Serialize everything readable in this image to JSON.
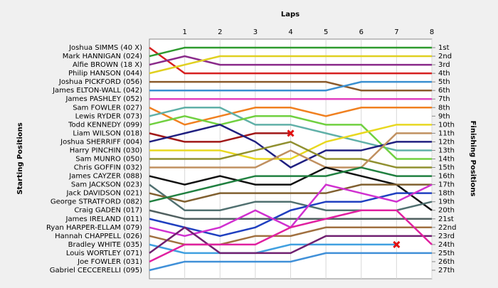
{
  "chart_data": {
    "type": "lap",
    "title": "Laps",
    "ylabel": "Starting Positions",
    "y2label": "Finishing Positions",
    "x": [
      0,
      1,
      2,
      3,
      4,
      5,
      6,
      7,
      8
    ],
    "xlim": [
      0,
      8
    ],
    "xticks": [
      1,
      2,
      3,
      4,
      5,
      6,
      7,
      8
    ],
    "ylim": [
      27,
      1
    ],
    "y2lim": [
      27,
      1
    ],
    "grid": true,
    "y2ticks": [
      {
        "value": 1,
        "label": "1st"
      },
      {
        "value": 2,
        "label": "2nd"
      },
      {
        "value": 3,
        "label": "3rd"
      },
      {
        "value": 4,
        "label": "4th"
      },
      {
        "value": 5,
        "label": "5th"
      },
      {
        "value": 6,
        "label": "6th"
      },
      {
        "value": 7,
        "label": "7th"
      },
      {
        "value": 8,
        "label": "8th"
      },
      {
        "value": 9,
        "label": "9th"
      },
      {
        "value": 10,
        "label": "10th"
      },
      {
        "value": 11,
        "label": "11th"
      },
      {
        "value": 12,
        "label": "12th"
      },
      {
        "value": 13,
        "label": "13th"
      },
      {
        "value": 14,
        "label": "14th"
      },
      {
        "value": 15,
        "label": "15th"
      },
      {
        "value": 16,
        "label": "16th"
      },
      {
        "value": 17,
        "label": "17th"
      },
      {
        "value": 18,
        "label": "18th"
      },
      {
        "value": 19,
        "label": "19th"
      },
      {
        "value": 20,
        "label": "20th"
      },
      {
        "value": 21,
        "label": "21st"
      },
      {
        "value": 22,
        "label": "22nd"
      },
      {
        "value": 23,
        "label": "23rd"
      },
      {
        "value": 24,
        "label": "24th"
      },
      {
        "value": 25,
        "label": "25th"
      },
      {
        "value": 26,
        "label": "26th"
      },
      {
        "value": 27,
        "label": "27th"
      }
    ],
    "series": [
      {
        "name": "Joshua SIMMS (40 X)",
        "color": "#d62020",
        "values": [
          1,
          4,
          4,
          4,
          4,
          4,
          4,
          4,
          4
        ]
      },
      {
        "name": "Mark HANNIGAN (024)",
        "color": "#2e9a2e",
        "values": [
          2,
          1,
          1,
          1,
          1,
          1,
          1,
          1,
          1
        ]
      },
      {
        "name": "Alfie BROWN (18 X)",
        "color": "#8a2a8a",
        "values": [
          3,
          2,
          3,
          3,
          3,
          3,
          3,
          3,
          3
        ]
      },
      {
        "name": "Philip HANSON (044)",
        "color": "#e0d020",
        "values": [
          4,
          3,
          2,
          2,
          2,
          2,
          2,
          2,
          2
        ]
      },
      {
        "name": "Joshua PICKFORD (056)",
        "color": "#8b5a2b",
        "values": [
          5,
          5,
          5,
          5,
          5,
          5,
          6,
          6,
          6
        ]
      },
      {
        "name": "James ELTON-WALL (042)",
        "color": "#3a8fd0",
        "values": [
          6,
          6,
          6,
          6,
          6,
          6,
          5,
          5,
          5
        ]
      },
      {
        "name": "James PASHLEY (052)",
        "color": "#e040c0",
        "values": [
          7,
          7,
          7,
          7,
          7,
          7,
          7,
          7,
          7
        ]
      },
      {
        "name": "Sam FOWLER (027)",
        "color": "#f08020",
        "values": [
          8,
          10,
          9,
          8,
          8,
          9,
          8,
          8,
          8
        ]
      },
      {
        "name": "Lewis RYDER (073)",
        "color": "#60b0a8",
        "values": [
          9,
          8,
          8,
          10,
          10,
          11,
          12,
          13,
          13
        ]
      },
      {
        "name": "Todd KENNEDY (099)",
        "color": "#70d040",
        "values": [
          10,
          9,
          10,
          9,
          9,
          10,
          10,
          14,
          14
        ]
      },
      {
        "name": "Liam WILSON (018)",
        "color": "#a01818",
        "values": [
          11,
          12,
          12,
          11,
          11,
          null,
          null,
          null,
          null
        ],
        "retired": true
      },
      {
        "name": "Joshua SHERRIFF (004)",
        "color": "#202080",
        "values": [
          12,
          11,
          10,
          12,
          15,
          13,
          13,
          12,
          12
        ]
      },
      {
        "name": "Harry PINCHIN (030)",
        "color": "#e8d820",
        "values": [
          13,
          13,
          13,
          14,
          14,
          12,
          11,
          10,
          10
        ]
      },
      {
        "name": "Sam MUNRO (050)",
        "color": "#909030",
        "values": [
          14,
          14,
          14,
          13,
          12,
          14,
          14,
          15,
          15
        ]
      },
      {
        "name": "Chris GOFFIN (032)",
        "color": "#c09060",
        "values": [
          15,
          15,
          15,
          15,
          13,
          15,
          15,
          11,
          11
        ]
      },
      {
        "name": "James CAYZER (088)",
        "color": "#101010",
        "values": [
          16,
          17,
          16,
          17,
          17,
          15,
          16,
          17,
          20
        ]
      },
      {
        "name": "Sam JACKSON (023)",
        "color": "#507070",
        "values": [
          17,
          20,
          20,
          19,
          19,
          20,
          20,
          20,
          19
        ]
      },
      {
        "name": "Jack DAVIDSON (021)",
        "color": "#806030",
        "values": [
          18,
          19,
          18,
          18,
          18,
          18,
          17,
          17,
          17
        ]
      },
      {
        "name": "George STRATFORD (082)",
        "color": "#208040",
        "values": [
          19,
          18,
          17,
          16,
          16,
          16,
          15,
          16,
          16
        ]
      },
      {
        "name": "Craig GADEN (017)",
        "color": "#506060",
        "values": [
          20,
          21,
          21,
          21,
          21,
          21,
          21,
          21,
          21
        ]
      },
      {
        "name": "James IRELAND (011)",
        "color": "#2040c0",
        "values": [
          21,
          22,
          23,
          22,
          20,
          19,
          19,
          18,
          18
        ]
      },
      {
        "name": "Ryan HARPER-ELLAM (079)",
        "color": "#d030d0",
        "values": [
          22,
          23,
          22,
          20,
          22,
          17,
          18,
          19,
          17
        ]
      },
      {
        "name": "Hannah CHAPPELL (026)",
        "color": "#a07040",
        "values": [
          23,
          24,
          24,
          23,
          23,
          22,
          22,
          22,
          22
        ]
      },
      {
        "name": "Bradley WHITE (035)",
        "color": "#40a0e0",
        "values": [
          24,
          25,
          25,
          25,
          24,
          24,
          24,
          24,
          null
        ],
        "retired": true
      },
      {
        "name": "Louis WORTLEY (071)",
        "color": "#702070",
        "values": [
          25,
          22,
          25,
          25,
          25,
          23,
          23,
          23,
          23
        ]
      },
      {
        "name": "Joe FOWLER (031)",
        "color": "#e020a0",
        "values": [
          26,
          24,
          24,
          24,
          22,
          21,
          20,
          20,
          24
        ]
      },
      {
        "name": "Gabriel CECCERELLI (095)",
        "color": "#4090d8",
        "values": [
          27,
          26,
          26,
          26,
          26,
          25,
          25,
          25,
          25
        ]
      }
    ]
  }
}
